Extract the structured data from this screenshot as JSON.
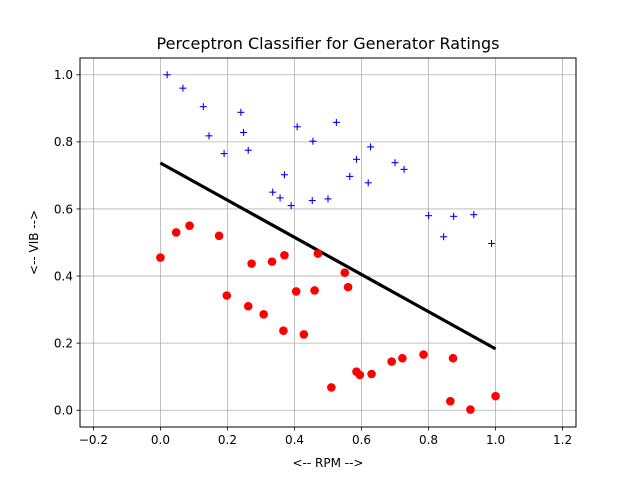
{
  "chart_data": {
    "type": "scatter",
    "title": "Perceptron Classifier for Generator Ratings",
    "xlabel": "<-- RPM -->",
    "ylabel": "<-- VIB -->",
    "xlim": [
      -0.24,
      1.24
    ],
    "ylim": [
      -0.05,
      1.05
    ],
    "xticks": [
      -0.2,
      0.0,
      0.2,
      0.4,
      0.6,
      0.8,
      1.0,
      1.2
    ],
    "xtick_labels": [
      "−0.2",
      "0.0",
      "0.2",
      "0.4",
      "0.6",
      "0.8",
      "1.0",
      "1.2"
    ],
    "yticks": [
      0.0,
      0.2,
      0.4,
      0.6,
      0.8,
      1.0
    ],
    "ytick_labels": [
      "0.0",
      "0.2",
      "0.4",
      "0.6",
      "0.8",
      "1.0"
    ],
    "grid": true,
    "series": [
      {
        "marker": "plus",
        "color": "#0000ff",
        "points": [
          [
            0.02,
            1.0
          ],
          [
            0.067,
            0.96
          ],
          [
            0.128,
            0.905
          ],
          [
            0.145,
            0.818
          ],
          [
            0.19,
            0.765
          ],
          [
            0.24,
            0.888
          ],
          [
            0.248,
            0.828
          ],
          [
            0.262,
            0.775
          ],
          [
            0.335,
            0.65
          ],
          [
            0.357,
            0.633
          ],
          [
            0.37,
            0.702
          ],
          [
            0.39,
            0.61
          ],
          [
            0.408,
            0.845
          ],
          [
            0.453,
            0.625
          ],
          [
            0.455,
            0.802
          ],
          [
            0.5,
            0.63
          ],
          [
            0.525,
            0.858
          ],
          [
            0.565,
            0.697
          ],
          [
            0.585,
            0.748
          ],
          [
            0.62,
            0.678
          ],
          [
            0.627,
            0.785
          ],
          [
            0.7,
            0.738
          ],
          [
            0.727,
            0.718
          ],
          [
            0.8,
            0.58
          ],
          [
            0.845,
            0.517
          ],
          [
            0.875,
            0.578
          ],
          [
            0.935,
            0.583
          ],
          [
            0.988,
            0.497
          ]
        ]
      },
      {
        "marker": "circle",
        "color": "#ff0000",
        "points": [
          [
            0.0,
            0.455
          ],
          [
            0.047,
            0.53
          ],
          [
            0.087,
            0.55
          ],
          [
            0.175,
            0.52
          ],
          [
            0.198,
            0.342
          ],
          [
            0.262,
            0.31
          ],
          [
            0.272,
            0.437
          ],
          [
            0.308,
            0.286
          ],
          [
            0.333,
            0.443
          ],
          [
            0.367,
            0.237
          ],
          [
            0.37,
            0.462
          ],
          [
            0.405,
            0.354
          ],
          [
            0.428,
            0.226
          ],
          [
            0.46,
            0.357
          ],
          [
            0.47,
            0.467
          ],
          [
            0.51,
            0.068
          ],
          [
            0.55,
            0.41
          ],
          [
            0.56,
            0.367
          ],
          [
            0.585,
            0.115
          ],
          [
            0.595,
            0.105
          ],
          [
            0.63,
            0.108
          ],
          [
            0.69,
            0.145
          ],
          [
            0.722,
            0.155
          ],
          [
            0.785,
            0.166
          ],
          [
            0.865,
            0.027
          ],
          [
            0.873,
            0.155
          ],
          [
            0.925,
            0.002
          ],
          [
            1.0,
            0.042
          ]
        ]
      }
    ],
    "decision_line": {
      "color": "#000000",
      "points": [
        [
          0.0,
          0.737
        ],
        [
          1.0,
          0.183
        ]
      ]
    }
  }
}
